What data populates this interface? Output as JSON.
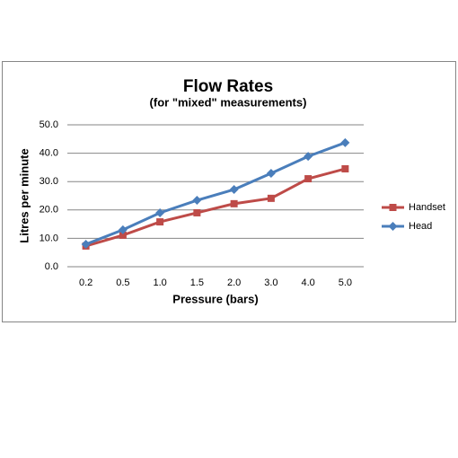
{
  "chart_data": {
    "type": "line",
    "title": "Flow Rates",
    "subtitle": "(for \"mixed\" measurements)",
    "x_label": "Pressure (bars)",
    "y_label": "Litres per minute",
    "categories": [
      "0.2",
      "0.5",
      "1.0",
      "1.5",
      "2.0",
      "3.0",
      "4.0",
      "5.0"
    ],
    "series": [
      {
        "name": "Handset",
        "color": "#be4b48",
        "marker": "square",
        "values": [
          7.3,
          11.1,
          15.8,
          19.0,
          22.2,
          24.1,
          31.0,
          34.5
        ]
      },
      {
        "name": "Head",
        "color": "#4a7ebb",
        "marker": "diamond",
        "values": [
          7.9,
          13.0,
          19.0,
          23.4,
          27.2,
          32.9,
          38.9,
          43.7
        ]
      }
    ],
    "ylim": [
      0,
      50
    ],
    "yticks": [
      {
        "value": 0,
        "label": "0.0"
      },
      {
        "value": 10,
        "label": "10.0"
      },
      {
        "value": 20,
        "label": "20.0"
      },
      {
        "value": 30,
        "label": "30.0"
      },
      {
        "value": 40,
        "label": "40.0"
      },
      {
        "value": 50,
        "label": "50.0"
      }
    ],
    "grid": true,
    "legend": "right"
  }
}
